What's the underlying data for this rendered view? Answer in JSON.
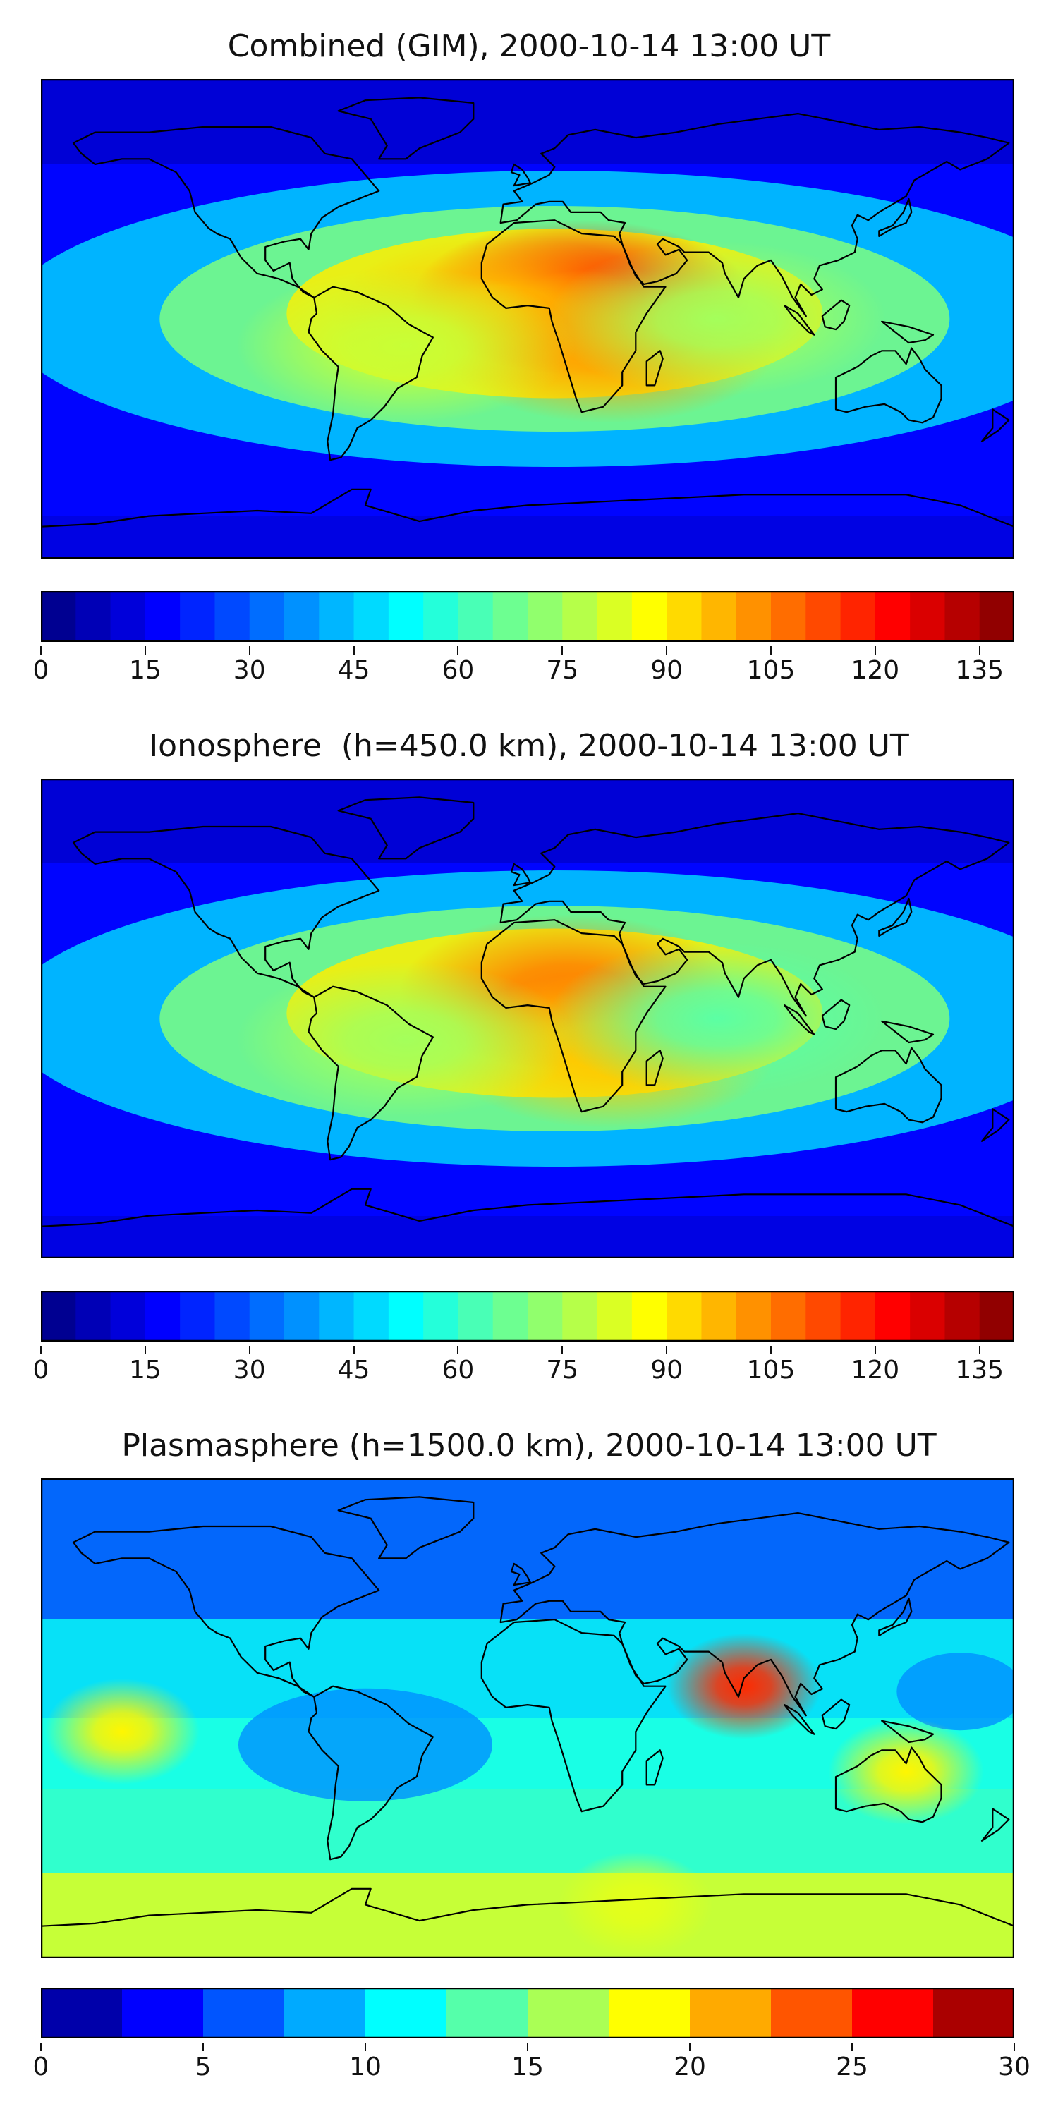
{
  "panels": [
    {
      "title": "Combined (GIM), 2000-10-14 13:00 UT",
      "colorbar": {
        "min": 0,
        "max": 140,
        "levels": 28,
        "ticks": [
          "0",
          "15",
          "30",
          "45",
          "60",
          "75",
          "90",
          "105",
          "120",
          "135"
        ],
        "tick_values": [
          0,
          15,
          30,
          45,
          60,
          75,
          90,
          105,
          120,
          135
        ]
      },
      "blobs": [
        {
          "lon": 20,
          "lat": 8,
          "value": 120
        },
        {
          "lon": -10,
          "lat": 2,
          "value": 95
        },
        {
          "lon": 30,
          "lat": -10,
          "value": 100
        },
        {
          "lon": -45,
          "lat": -10,
          "value": 80
        },
        {
          "lon": 70,
          "lat": 0,
          "value": 75
        }
      ]
    },
    {
      "title": "Ionosphere  (h=450.0 km), 2000-10-14 13:00 UT",
      "colorbar": {
        "min": 0,
        "max": 140,
        "levels": 28,
        "ticks": [
          "0",
          "15",
          "30",
          "45",
          "60",
          "75",
          "90",
          "105",
          "120",
          "135"
        ],
        "tick_values": [
          0,
          15,
          30,
          45,
          60,
          75,
          90,
          105,
          120,
          135
        ]
      },
      "blobs": [
        {
          "lon": 15,
          "lat": 10,
          "value": 105
        },
        {
          "lon": 30,
          "lat": -12,
          "value": 95
        },
        {
          "lon": -45,
          "lat": -8,
          "value": 75
        },
        {
          "lon": 70,
          "lat": 0,
          "value": 65
        }
      ]
    },
    {
      "title": "Plasmasphere (h=1500.0 km), 2000-10-14 13:00 UT",
      "colorbar": {
        "min": 0,
        "max": 30,
        "levels": 12,
        "ticks": [
          "0",
          "5",
          "10",
          "15",
          "20",
          "25",
          "30"
        ],
        "tick_values": [
          0,
          5,
          10,
          15,
          20,
          25,
          30
        ]
      },
      "blobs": [
        {
          "lon": 80,
          "lat": 12,
          "value": 25
        },
        {
          "lon": -150,
          "lat": -5,
          "value": 19
        },
        {
          "lon": 140,
          "lat": -20,
          "value": 19
        },
        {
          "lon": 40,
          "lat": -70,
          "value": 18
        }
      ]
    }
  ],
  "colors": {
    "jet": [
      "#00007f",
      "#0000ff",
      "#007fff",
      "#00ffff",
      "#7fff7f",
      "#ffff00",
      "#ff7f00",
      "#ff0000",
      "#7f0000"
    ],
    "coastline": "#000000"
  }
}
